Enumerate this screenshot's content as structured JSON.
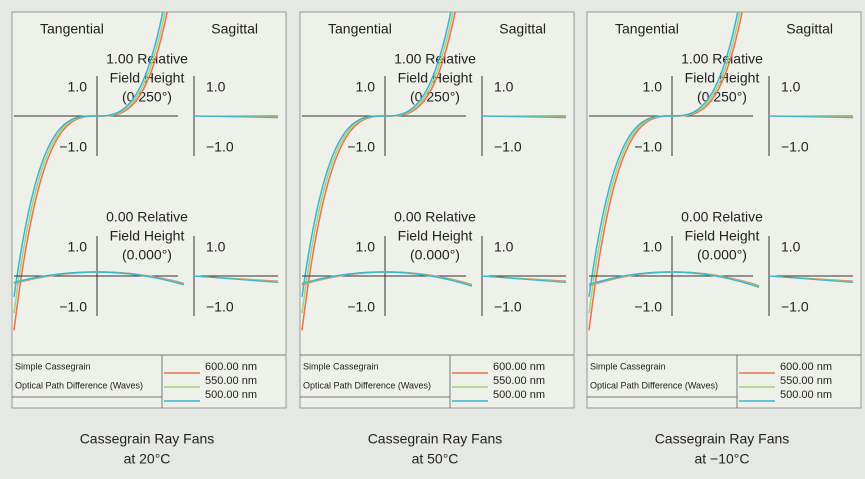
{
  "panels": [
    {
      "tangential": "Tangential",
      "sagittal": "Sagittal",
      "fields": [
        {
          "label": [
            "1.00 Relative",
            "Field Height",
            "(0.250°)"
          ],
          "tan_ticks": [
            "1.0",
            "−1.0"
          ],
          "sag_ticks": [
            "1.0",
            "−1.0"
          ]
        },
        {
          "label": [
            "0.00 Relative",
            "Field Height",
            "(0.000°)"
          ],
          "tan_ticks": [
            "1.0",
            "−1.0"
          ],
          "sag_ticks": [
            "1.0",
            "−1.0"
          ]
        }
      ],
      "legend": {
        "title": "Simple Cassegrain",
        "subtitle": "Optical Path Difference (Waves)",
        "entries": [
          {
            "name": "600.00 nm",
            "color": "#e8734e"
          },
          {
            "name": "550.00 nm",
            "color": "#a8d07a"
          },
          {
            "name": "500.00 nm",
            "color": "#3ab4cf"
          }
        ]
      },
      "caption": [
        "Cassegrain Ray Fans",
        "at 20°C"
      ]
    },
    {
      "tangential": "Tangential",
      "sagittal": "Sagittal",
      "fields": [
        {
          "label": [
            "1.00 Relative",
            "Field Height",
            "(0.250°)"
          ],
          "tan_ticks": [
            "1.0",
            "−1.0"
          ],
          "sag_ticks": [
            "1.0",
            "−1.0"
          ]
        },
        {
          "label": [
            "0.00 Relative",
            "Field Height",
            "(0.000°)"
          ],
          "tan_ticks": [
            "1.0",
            "−1.0"
          ],
          "sag_ticks": [
            "1.0",
            "−1.0"
          ]
        }
      ],
      "legend": {
        "title": "Simple Cassegrain",
        "subtitle": "Optical Path Difference (Waves)",
        "entries": [
          {
            "name": "600.00 nm",
            "color": "#e8734e"
          },
          {
            "name": "550.00 nm",
            "color": "#a8d07a"
          },
          {
            "name": "500.00 nm",
            "color": "#3ab4cf"
          }
        ]
      },
      "caption": [
        "Cassegrain Ray Fans",
        "at 50°C"
      ]
    },
    {
      "tangential": "Tangential",
      "sagittal": "Sagittal",
      "fields": [
        {
          "label": [
            "1.00 Relative",
            "Field Height",
            "(0.250°)"
          ],
          "tan_ticks": [
            "1.0",
            "−1.0"
          ],
          "sag_ticks": [
            "1.0",
            "−1.0"
          ]
        },
        {
          "label": [
            "0.00 Relative",
            "Field Height",
            "(0.000°)"
          ],
          "tan_ticks": [
            "1.0",
            "−1.0"
          ],
          "sag_ticks": [
            "1.0",
            "−1.0"
          ]
        }
      ],
      "legend": {
        "title": "Simple Cassegrain",
        "subtitle": "Optical Path Difference (Waves)",
        "entries": [
          {
            "name": "600.00 nm",
            "color": "#e8734e"
          },
          {
            "name": "550.00 nm",
            "color": "#a8d07a"
          },
          {
            "name": "500.00 nm",
            "color": "#3ab4cf"
          }
        ]
      },
      "caption": [
        "Cassegrain Ray Fans",
        "at −10°C"
      ]
    }
  ]
}
